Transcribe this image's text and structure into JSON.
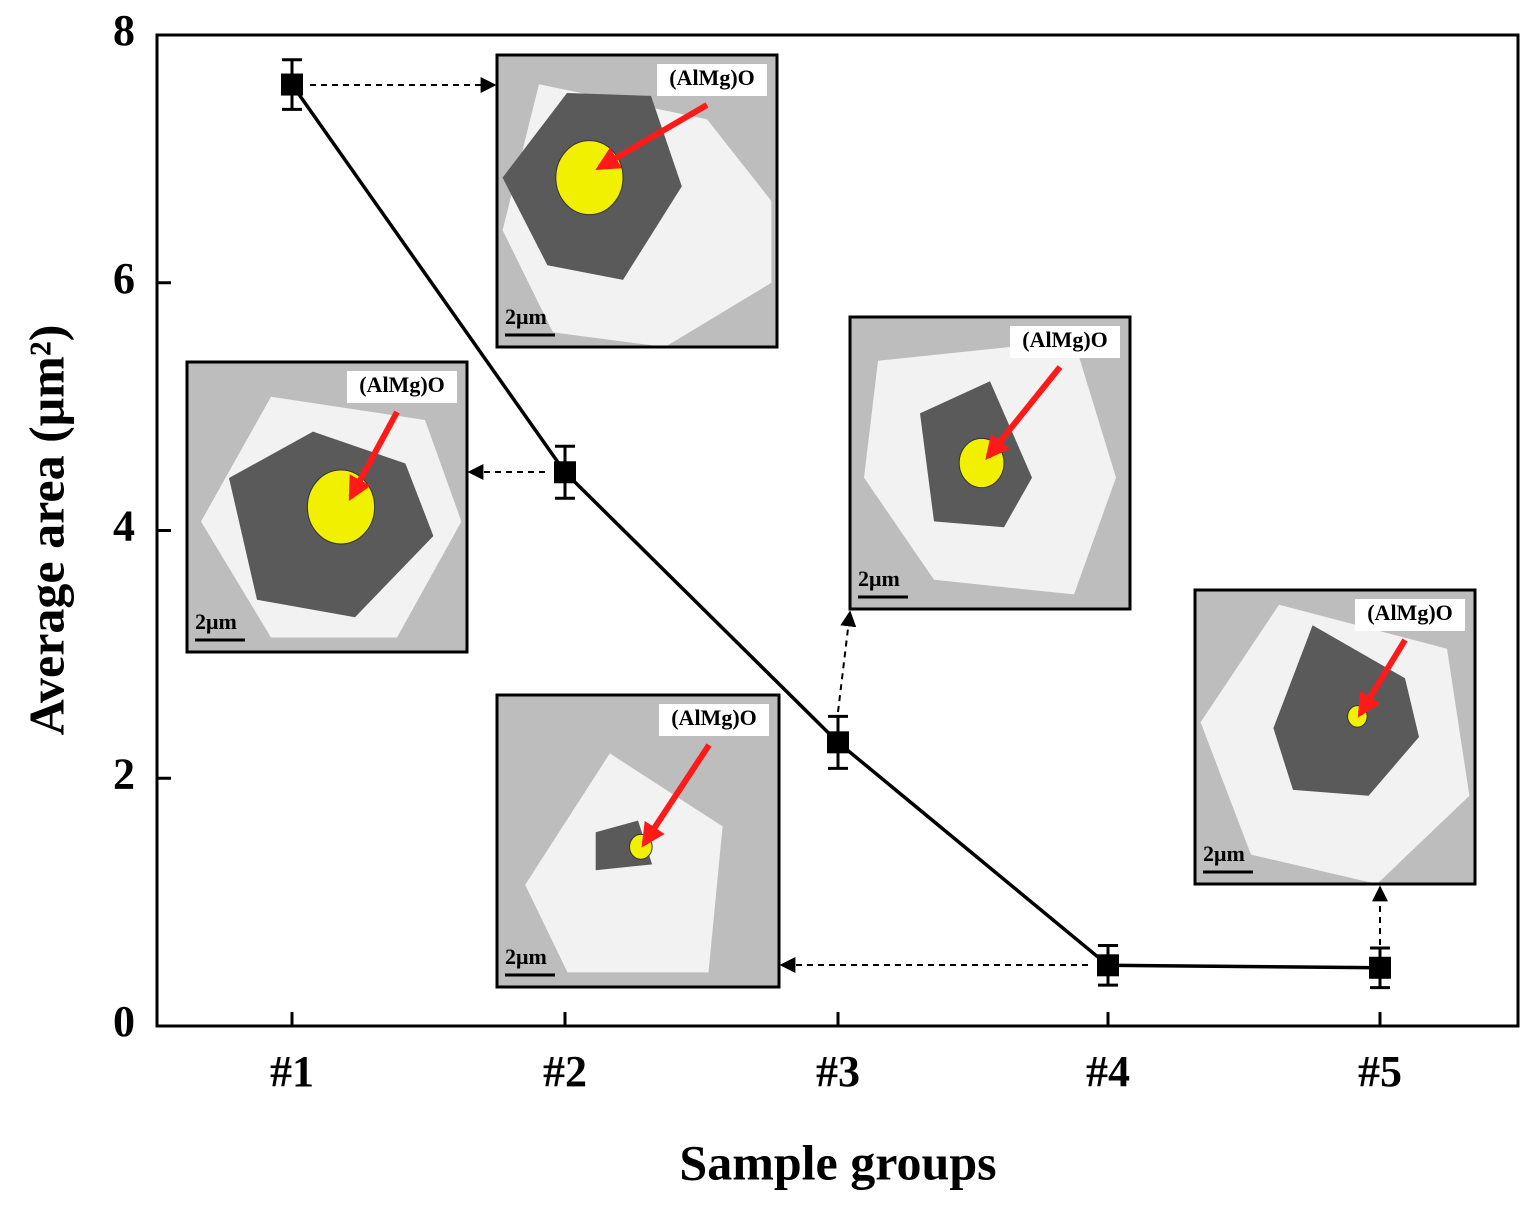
{
  "chart_data": {
    "type": "line",
    "x_label": "Sample groups",
    "y_label": "Average area (μm²)",
    "categories": [
      "#1",
      "#2",
      "#3",
      "#4",
      "#5"
    ],
    "series": [
      {
        "color": "#000000",
        "values": [
          7.6,
          4.47,
          2.29,
          0.49,
          0.47
        ],
        "errors": [
          0.2,
          0.21,
          0.21,
          0.16,
          0.16
        ]
      }
    ],
    "ylim": [
      0,
      8
    ],
    "yticks": [
      0,
      2,
      4,
      6,
      8
    ],
    "insets": [
      {
        "label": "(AlMg)O",
        "scale": "2μm"
      },
      {
        "label": "(AlMg)O",
        "scale": "2μm"
      },
      {
        "label": "(AlMg)O",
        "scale": "2μm"
      },
      {
        "label": "(AlMg)O",
        "scale": "2μm"
      },
      {
        "label": "(AlMg)O",
        "scale": "2μm"
      }
    ]
  }
}
